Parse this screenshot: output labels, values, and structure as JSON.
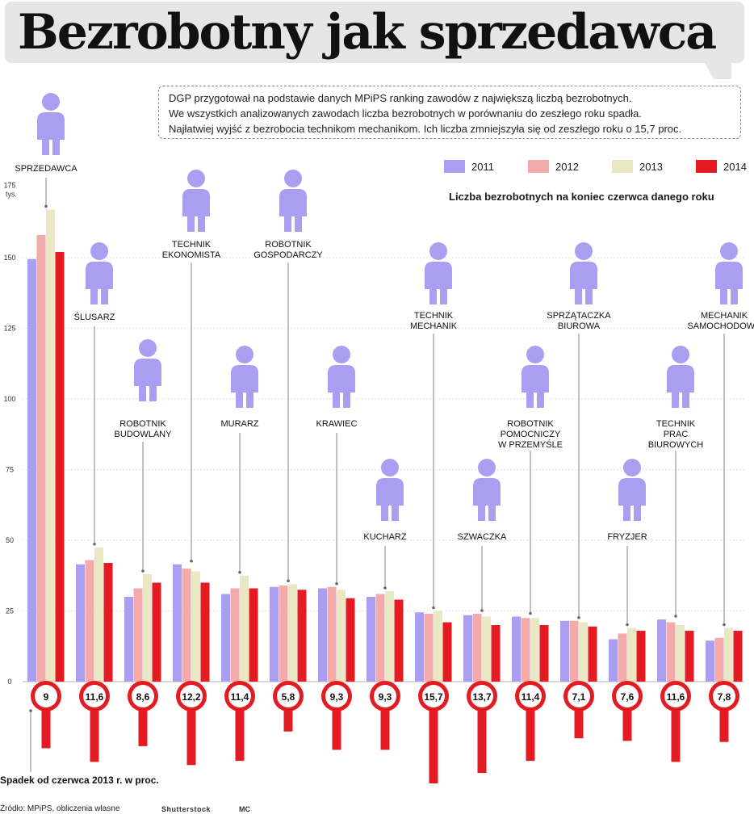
{
  "title": "Bezrobotny jak sprzedawca",
  "intro_lines": [
    "DGP przygotował na podstawie danych MPiPS ranking zawodów z największą liczbą bezrobotnych.",
    "We wszystkich analizowanych zawodach liczba bezrobotnych w porównaniu do zeszłego roku spadła.",
    "Najłatwiej wyjść z bezrobocia technikom mechanikom. Ich liczba zmniejszyła się od zeszłego roku o 15,7 proc."
  ],
  "subtitle": "Liczba bezrobotnych na koniec czerwca danego roku",
  "decline_label": "Spadek od czerwca 2013 r. w proc.",
  "source": "Źródło: MPiPS, obliczenia własne",
  "photo_credit": "Shutterstock",
  "author": "MC",
  "chart_data": {
    "type": "bar",
    "ylim": [
      0,
      175
    ],
    "yticks": [
      0,
      25,
      50,
      75,
      100,
      125,
      150,
      175
    ],
    "y_top_label": [
      "175",
      "tys."
    ],
    "series": [
      {
        "name": "2011",
        "color": "#a99ef0"
      },
      {
        "name": "2012",
        "color": "#f2aaaa"
      },
      {
        "name": "2013",
        "color": "#e9e8c3"
      },
      {
        "name": "2014",
        "color": "#e51b24"
      }
    ],
    "categories": [
      {
        "label": [
          "SPRZEDAWCA"
        ],
        "icon": "salesperson-icon",
        "values": [
          149.5,
          158,
          167,
          152
        ],
        "decline": "9",
        "decline_value": 9
      },
      {
        "label": [
          "ŚLUSARZ"
        ],
        "icon": "locksmith-icon",
        "values": [
          41.5,
          43,
          47.5,
          42
        ],
        "decline": "11,6",
        "decline_value": 11.6
      },
      {
        "label": [
          "ROBOTNIK",
          "BUDOWLANY"
        ],
        "icon": "construction-worker-icon",
        "values": [
          30,
          33,
          38,
          35
        ],
        "decline": "8,6",
        "decline_value": 8.6
      },
      {
        "label": [
          "TECHNIK",
          "EKONOMISTA"
        ],
        "icon": "economist-icon",
        "values": [
          41.5,
          40,
          39,
          35
        ],
        "decline": "12,2",
        "decline_value": 12.2
      },
      {
        "label": [
          "MURARZ"
        ],
        "icon": "bricklayer-icon",
        "values": [
          31,
          33,
          37.5,
          33
        ],
        "decline": "11,4",
        "decline_value": 11.4
      },
      {
        "label": [
          "ROBOTNIK",
          "GOSPODARCZY"
        ],
        "icon": "handyman-icon",
        "values": [
          33.5,
          34,
          34.5,
          32.5
        ],
        "decline": "5,8",
        "decline_value": 5.8
      },
      {
        "label": [
          "KRAWIEC"
        ],
        "icon": "tailor-icon",
        "values": [
          33,
          33.5,
          32.5,
          29.5
        ],
        "decline": "9,3",
        "decline_value": 9.3
      },
      {
        "label": [
          "KUCHARZ"
        ],
        "icon": "cook-icon",
        "values": [
          30,
          31,
          32,
          29
        ],
        "decline": "9,3",
        "decline_value": 9.3
      },
      {
        "label": [
          "TECHNIK",
          "MECHANIK"
        ],
        "icon": "mechanic-technician-icon",
        "values": [
          24.5,
          24,
          25,
          21
        ],
        "decline": "15,7",
        "decline_value": 15.7
      },
      {
        "label": [
          "SZWACZKA"
        ],
        "icon": "seamstress-icon",
        "values": [
          23.5,
          24,
          23,
          20
        ],
        "decline": "13,7",
        "decline_value": 13.7
      },
      {
        "label": [
          "ROBOTNIK",
          "POMOCNICZY",
          "W PRZEMYŚLE"
        ],
        "icon": "auxiliary-worker-icon",
        "values": [
          23,
          22.5,
          22.5,
          20
        ],
        "decline": "11,4",
        "decline_value": 11.4
      },
      {
        "label": [
          "SPRZĄTACZKA",
          "BIUROWA"
        ],
        "icon": "cleaner-icon",
        "values": [
          21.5,
          21.5,
          21,
          19.5
        ],
        "decline": "7,1",
        "decline_value": 7.1
      },
      {
        "label": [
          "FRYZJER"
        ],
        "icon": "hairdresser-icon",
        "values": [
          15,
          17,
          19,
          18
        ],
        "decline": "7,6",
        "decline_value": 7.6
      },
      {
        "label": [
          "TECHNIK",
          "PRAC",
          "BIUROWYCH"
        ],
        "icon": "office-technician-icon",
        "values": [
          22,
          21,
          20,
          18
        ],
        "decline": "11,6",
        "decline_value": 11.6
      },
      {
        "label": [
          "MECHANIK",
          "SAMOCHODOWY"
        ],
        "icon": "car-mechanic-icon",
        "values": [
          14.5,
          15.5,
          19,
          18
        ],
        "decline": "7,8",
        "decline_value": 7.8
      }
    ]
  }
}
